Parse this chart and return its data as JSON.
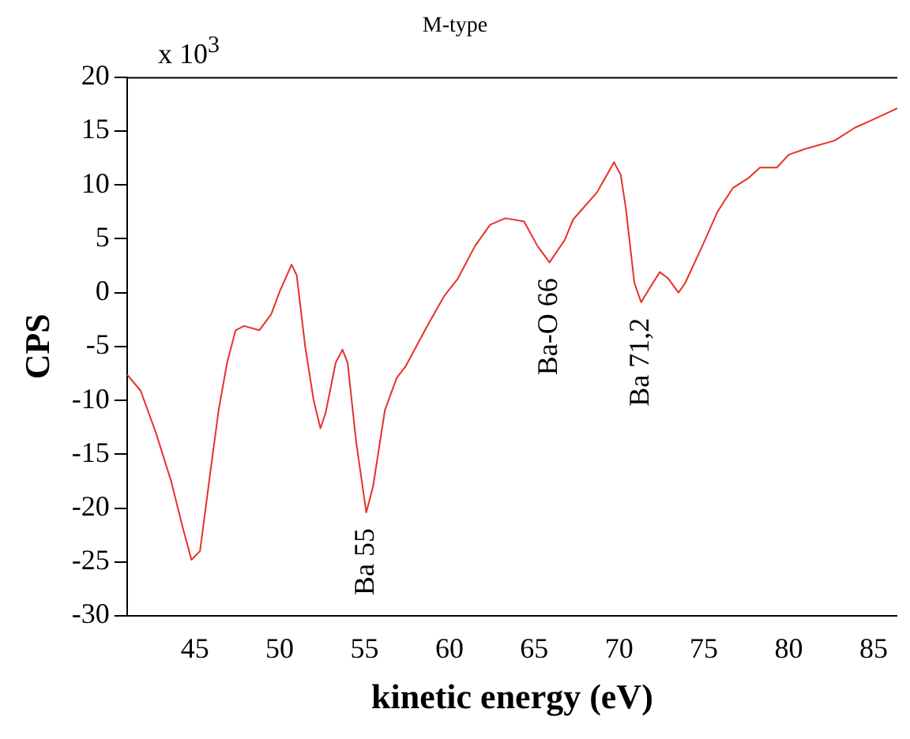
{
  "chart_data": {
    "type": "line",
    "title": "M-type",
    "xlabel": "kinetic energy (eV)",
    "ylabel": "CPS",
    "annotations": [
      "x 10$^{3}$",
      {
        "text": "Ba 55",
        "x": 55.1,
        "y": -20.4
      },
      {
        "text": "Ba-O 66",
        "x": 65.9,
        "y": 2.8
      },
      {
        "text": "Ba 71,2",
        "x": 71.3,
        "y": -0.9
      }
    ],
    "x": [
      41,
      41.8,
      42.7,
      43.6,
      44.3,
      44.8,
      45.3,
      45.9,
      46.4,
      46.9,
      47.4,
      47.9,
      48.8,
      49.5,
      50.0,
      50.7,
      51,
      51.5,
      52,
      52.4,
      52.7,
      53.3,
      53.7,
      54,
      54.5,
      55.1,
      55.5,
      56.2,
      56.9,
      57.4,
      58.8,
      59.7,
      60.5,
      61.5,
      62.4,
      63.3,
      64.4,
      65.2,
      65.9,
      66.8,
      67.3,
      68.7,
      69.7,
      70.1,
      70.4,
      70.9,
      71.3,
      71.8,
      72.4,
      72.9,
      73.5,
      73.9,
      74.9,
      75.8,
      76.7,
      77.6,
      78.3,
      79.3,
      80,
      81.1,
      82.7,
      83.9,
      84.9,
      86.4
    ],
    "series": [
      {
        "color": "#e8302a",
        "values": [
          -7.6,
          -9.1,
          -13,
          -17.5,
          -21.9,
          -24.8,
          -24,
          -16.8,
          -10.9,
          -6.5,
          -3.5,
          -3.1,
          -3.5,
          -2,
          0.1,
          2.6,
          1.6,
          -5,
          -10,
          -12.6,
          -11.2,
          -6.5,
          -5.3,
          -6.5,
          -13.8,
          -20.4,
          -18,
          -10.9,
          -7.9,
          -6.9,
          -2.8,
          -0.3,
          1.3,
          4.3,
          6.3,
          6.9,
          6.6,
          4.3,
          2.8,
          4.9,
          6.8,
          9.3,
          12.1,
          10.9,
          7.8,
          0.9,
          -0.9,
          0.4,
          1.9,
          1.3,
          0,
          0.9,
          4.3,
          7.5,
          9.7,
          10.6,
          11.6,
          11.6,
          12.8,
          13.4,
          14.1,
          15.3,
          16,
          17.1
        ]
      }
    ],
    "xlim": [
      41,
      86.4
    ],
    "xticks": [
      45,
      50,
      55,
      60,
      65,
      70,
      75,
      80,
      85
    ],
    "ylim": [
      -30,
      20
    ],
    "yticks": [
      -30,
      -25,
      -20,
      -15,
      -10,
      -5,
      0,
      5,
      10,
      15,
      20
    ],
    "grid": false,
    "legend": false,
    "marker": "none",
    "line_style": "solid"
  }
}
